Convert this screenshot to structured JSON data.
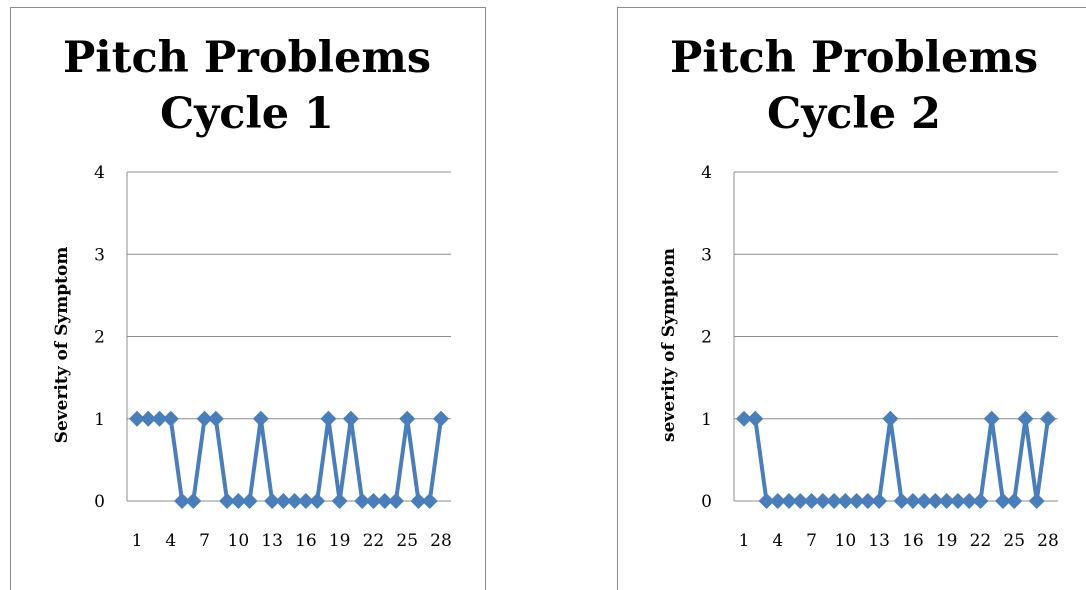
{
  "chart_data": [
    {
      "type": "line",
      "title": "Pitch Problems Cycle 1",
      "title_lines": [
        "Pitch Problems",
        "Cycle 1"
      ],
      "xlabel": "",
      "ylabel": "Severity of Symptom",
      "ylim": [
        0,
        4
      ],
      "y_ticks": [
        "0",
        "1",
        "2",
        "3",
        "4"
      ],
      "x_ticks": [
        "1",
        "4",
        "7",
        "10",
        "13",
        "16",
        "19",
        "22",
        "25",
        "28"
      ],
      "x": [
        1,
        2,
        3,
        4,
        5,
        6,
        7,
        8,
        9,
        10,
        11,
        12,
        13,
        14,
        15,
        16,
        17,
        18,
        19,
        20,
        21,
        22,
        23,
        24,
        25,
        26,
        27,
        28
      ],
      "grid": true,
      "color": "#4a7ebb",
      "series": [
        {
          "values": [
            1,
            1,
            1,
            1,
            0,
            0,
            1,
            1,
            0,
            0,
            0,
            1,
            0,
            0,
            0,
            0,
            0,
            1,
            0,
            1,
            0,
            0,
            0,
            0,
            1,
            0,
            0,
            1
          ]
        }
      ]
    },
    {
      "type": "line",
      "title": "Pitch Problems Cycle 2",
      "title_lines": [
        "Pitch Problems",
        "Cycle 2"
      ],
      "xlabel": "",
      "ylabel": "severity of Symptom",
      "ylim": [
        0,
        4
      ],
      "y_ticks": [
        "0",
        "1",
        "2",
        "3",
        "4"
      ],
      "x_ticks": [
        "1",
        "4",
        "7",
        "10",
        "13",
        "16",
        "19",
        "22",
        "25",
        "28"
      ],
      "x": [
        1,
        2,
        3,
        4,
        5,
        6,
        7,
        8,
        9,
        10,
        11,
        12,
        13,
        14,
        15,
        16,
        17,
        18,
        19,
        20,
        21,
        22,
        23,
        24,
        25,
        26,
        27,
        28
      ],
      "grid": true,
      "color": "#4a7ebb",
      "series": [
        {
          "values": [
            1,
            1,
            0,
            0,
            0,
            0,
            0,
            0,
            0,
            0,
            0,
            0,
            0,
            1,
            0,
            0,
            0,
            0,
            0,
            0,
            0,
            0,
            1,
            0,
            0,
            1,
            0,
            1
          ]
        }
      ]
    }
  ]
}
